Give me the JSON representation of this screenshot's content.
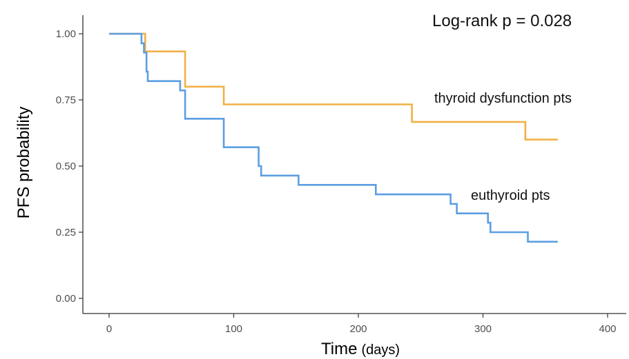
{
  "chart_data": {
    "type": "line",
    "step": true,
    "title": "",
    "xlabel": "Time",
    "xlabel_unit": "(days)",
    "ylabel": "PFS probability",
    "xlim": [
      0,
      400
    ],
    "ylim": [
      0,
      1
    ],
    "x_ticks": [
      0,
      100,
      200,
      300,
      400
    ],
    "x_tick_labels": [
      "0",
      "100",
      "200",
      "300",
      "400"
    ],
    "y_ticks": [
      0,
      0.25,
      0.5,
      0.75,
      1.0
    ],
    "y_tick_labels": [
      "0.00",
      "0.25",
      "0.50",
      "0.75",
      "1.00"
    ],
    "grid": false,
    "legend": "none (series labelled directly on the plot)",
    "annotations": [
      {
        "text": "Log-rank p = 0.028"
      }
    ],
    "series": [
      {
        "name": "thyroid dysfunction pts",
        "color": "#f2b046",
        "x": [
          0,
          29,
          61,
          92,
          243,
          334,
          360
        ],
        "y": [
          1.0,
          0.933,
          0.8,
          0.733,
          0.667,
          0.6,
          0.6
        ]
      },
      {
        "name": "euthyroid pts",
        "color": "#5b9ee2",
        "x": [
          0,
          26,
          28,
          30,
          31,
          57,
          61,
          92,
          120,
          122,
          152,
          214,
          274,
          279,
          304,
          306,
          336,
          360
        ],
        "y": [
          1.0,
          0.964,
          0.929,
          0.857,
          0.821,
          0.786,
          0.679,
          0.571,
          0.5,
          0.464,
          0.429,
          0.393,
          0.357,
          0.321,
          0.286,
          0.25,
          0.214,
          0.214
        ]
      }
    ]
  }
}
